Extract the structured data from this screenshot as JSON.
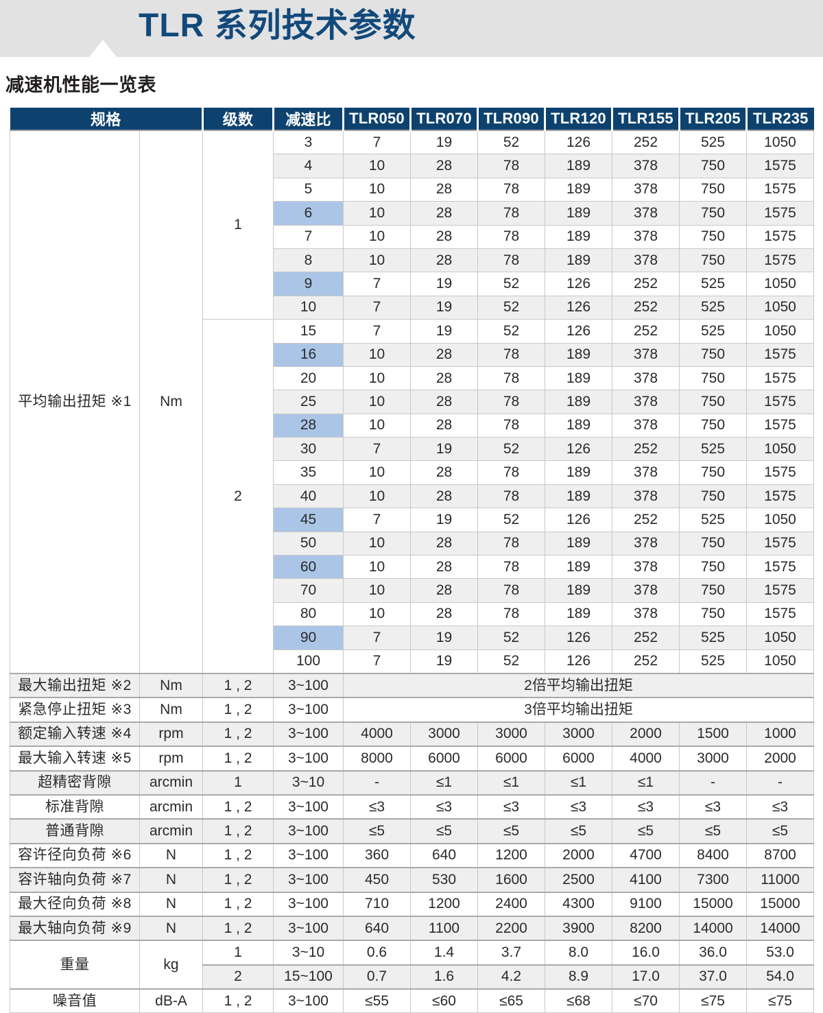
{
  "page": {
    "title": "TLR 系列技术参数",
    "subtitle": "减速机性能一览表"
  },
  "colors": {
    "header_bg": "#0d426f",
    "title_color": "#12497b",
    "band_bg": "#e2e2e2",
    "alt_row": "#efefef",
    "highlight": "#abc5e6",
    "border_light": "#c8c8c8",
    "border_dark": "#a9a9a9",
    "text": "#2b2a29"
  },
  "table": {
    "columns": [
      "规格",
      "级数",
      "减速比",
      "TLR050",
      "TLR070",
      "TLR090",
      "TLR120",
      "TLR155",
      "TLR205",
      "TLR235"
    ],
    "avg_torque": {
      "label": "平均输出扭矩 ※1",
      "unit": "Nm",
      "stages": [
        {
          "stage": "1",
          "rows": [
            {
              "ratio": "3",
              "hl": false,
              "v": [
                "7",
                "19",
                "52",
                "126",
                "252",
                "525",
                "1050"
              ]
            },
            {
              "ratio": "4",
              "hl": false,
              "v": [
                "10",
                "28",
                "78",
                "189",
                "378",
                "750",
                "1575"
              ]
            },
            {
              "ratio": "5",
              "hl": false,
              "v": [
                "10",
                "28",
                "78",
                "189",
                "378",
                "750",
                "1575"
              ]
            },
            {
              "ratio": "6",
              "hl": true,
              "v": [
                "10",
                "28",
                "78",
                "189",
                "378",
                "750",
                "1575"
              ]
            },
            {
              "ratio": "7",
              "hl": false,
              "v": [
                "10",
                "28",
                "78",
                "189",
                "378",
                "750",
                "1575"
              ]
            },
            {
              "ratio": "8",
              "hl": false,
              "v": [
                "10",
                "28",
                "78",
                "189",
                "378",
                "750",
                "1575"
              ]
            },
            {
              "ratio": "9",
              "hl": true,
              "v": [
                "7",
                "19",
                "52",
                "126",
                "252",
                "525",
                "1050"
              ]
            },
            {
              "ratio": "10",
              "hl": false,
              "v": [
                "7",
                "19",
                "52",
                "126",
                "252",
                "525",
                "1050"
              ]
            }
          ]
        },
        {
          "stage": "2",
          "rows": [
            {
              "ratio": "15",
              "hl": false,
              "v": [
                "7",
                "19",
                "52",
                "126",
                "252",
                "525",
                "1050"
              ]
            },
            {
              "ratio": "16",
              "hl": true,
              "v": [
                "10",
                "28",
                "78",
                "189",
                "378",
                "750",
                "1575"
              ]
            },
            {
              "ratio": "20",
              "hl": false,
              "v": [
                "10",
                "28",
                "78",
                "189",
                "378",
                "750",
                "1575"
              ]
            },
            {
              "ratio": "25",
              "hl": false,
              "v": [
                "10",
                "28",
                "78",
                "189",
                "378",
                "750",
                "1575"
              ]
            },
            {
              "ratio": "28",
              "hl": true,
              "v": [
                "10",
                "28",
                "78",
                "189",
                "378",
                "750",
                "1575"
              ]
            },
            {
              "ratio": "30",
              "hl": false,
              "v": [
                "7",
                "19",
                "52",
                "126",
                "252",
                "525",
                "1050"
              ]
            },
            {
              "ratio": "35",
              "hl": false,
              "v": [
                "10",
                "28",
                "78",
                "189",
                "378",
                "750",
                "1575"
              ]
            },
            {
              "ratio": "40",
              "hl": false,
              "v": [
                "10",
                "28",
                "78",
                "189",
                "378",
                "750",
                "1575"
              ]
            },
            {
              "ratio": "45",
              "hl": true,
              "v": [
                "7",
                "19",
                "52",
                "126",
                "252",
                "525",
                "1050"
              ]
            },
            {
              "ratio": "50",
              "hl": false,
              "v": [
                "10",
                "28",
                "78",
                "189",
                "378",
                "750",
                "1575"
              ]
            },
            {
              "ratio": "60",
              "hl": true,
              "v": [
                "10",
                "28",
                "78",
                "189",
                "378",
                "750",
                "1575"
              ]
            },
            {
              "ratio": "70",
              "hl": false,
              "v": [
                "10",
                "28",
                "78",
                "189",
                "378",
                "750",
                "1575"
              ]
            },
            {
              "ratio": "80",
              "hl": false,
              "v": [
                "10",
                "28",
                "78",
                "189",
                "378",
                "750",
                "1575"
              ]
            },
            {
              "ratio": "90",
              "hl": true,
              "v": [
                "7",
                "19",
                "52",
                "126",
                "252",
                "525",
                "1050"
              ]
            },
            {
              "ratio": "100",
              "hl": false,
              "v": [
                "7",
                "19",
                "52",
                "126",
                "252",
                "525",
                "1050"
              ]
            }
          ]
        }
      ]
    },
    "spec_rows": [
      {
        "label": "最大输出扭矩 ※2",
        "unit": "Nm",
        "stage": "1 , 2",
        "ratio": "3~100",
        "note": "2倍平均输出扭矩"
      },
      {
        "label": "紧急停止扭矩 ※3",
        "unit": "Nm",
        "stage": "1 , 2",
        "ratio": "3~100",
        "note": "3倍平均输出扭矩"
      },
      {
        "label": "额定输入转速 ※4",
        "unit": "rpm",
        "stage": "1 , 2",
        "ratio": "3~100",
        "v": [
          "4000",
          "3000",
          "3000",
          "3000",
          "2000",
          "1500",
          "1000"
        ]
      },
      {
        "label": "最大输入转速 ※5",
        "unit": "rpm",
        "stage": "1 , 2",
        "ratio": "3~100",
        "v": [
          "8000",
          "6000",
          "6000",
          "6000",
          "4000",
          "3000",
          "2000"
        ]
      },
      {
        "label": "超精密背隙",
        "unit": "arcmin",
        "stage": "1",
        "ratio": "3~10",
        "v": [
          "-",
          "≤1",
          "≤1",
          "≤1",
          "≤1",
          "-",
          "-"
        ]
      },
      {
        "label": "标准背隙",
        "unit": "arcmin",
        "stage": "1 , 2",
        "ratio": "3~100",
        "v": [
          "≤3",
          "≤3",
          "≤3",
          "≤3",
          "≤3",
          "≤3",
          "≤3"
        ]
      },
      {
        "label": "普通背隙",
        "unit": "arcmin",
        "stage": "1 , 2",
        "ratio": "3~100",
        "v": [
          "≤5",
          "≤5",
          "≤5",
          "≤5",
          "≤5",
          "≤5",
          "≤5"
        ]
      },
      {
        "label": "容许径向负荷 ※6",
        "unit": "N",
        "stage": "1 , 2",
        "ratio": "3~100",
        "v": [
          "360",
          "640",
          "1200",
          "2000",
          "4700",
          "8400",
          "8700"
        ]
      },
      {
        "label": "容许轴向负荷 ※7",
        "unit": "N",
        "stage": "1 , 2",
        "ratio": "3~100",
        "v": [
          "450",
          "530",
          "1600",
          "2500",
          "4100",
          "7300",
          "11000"
        ]
      },
      {
        "label": "最大径向负荷 ※8",
        "unit": "N",
        "stage": "1 , 2",
        "ratio": "3~100",
        "v": [
          "710",
          "1200",
          "2400",
          "4300",
          "9100",
          "15000",
          "15000"
        ]
      },
      {
        "label": "最大轴向负荷 ※9",
        "unit": "N",
        "stage": "1 , 2",
        "ratio": "3~100",
        "v": [
          "640",
          "1100",
          "2200",
          "3900",
          "8200",
          "14000",
          "14000"
        ]
      }
    ],
    "weight": {
      "label": "重量",
      "unit": "kg",
      "rows": [
        {
          "stage": "1",
          "ratio": "3~10",
          "v": [
            "0.6",
            "1.4",
            "3.7",
            "8.0",
            "16.0",
            "36.0",
            "53.0"
          ]
        },
        {
          "stage": "2",
          "ratio": "15~100",
          "v": [
            "0.7",
            "1.6",
            "4.2",
            "8.9",
            "17.0",
            "37.0",
            "54.0"
          ]
        }
      ]
    },
    "noise": {
      "label": "噪音值",
      "unit": "dB-A",
      "stage": "1 , 2",
      "ratio": "3~100",
      "v": [
        "≤55",
        "≤60",
        "≤65",
        "≤68",
        "≤70",
        "≤75",
        "≤75"
      ]
    }
  }
}
